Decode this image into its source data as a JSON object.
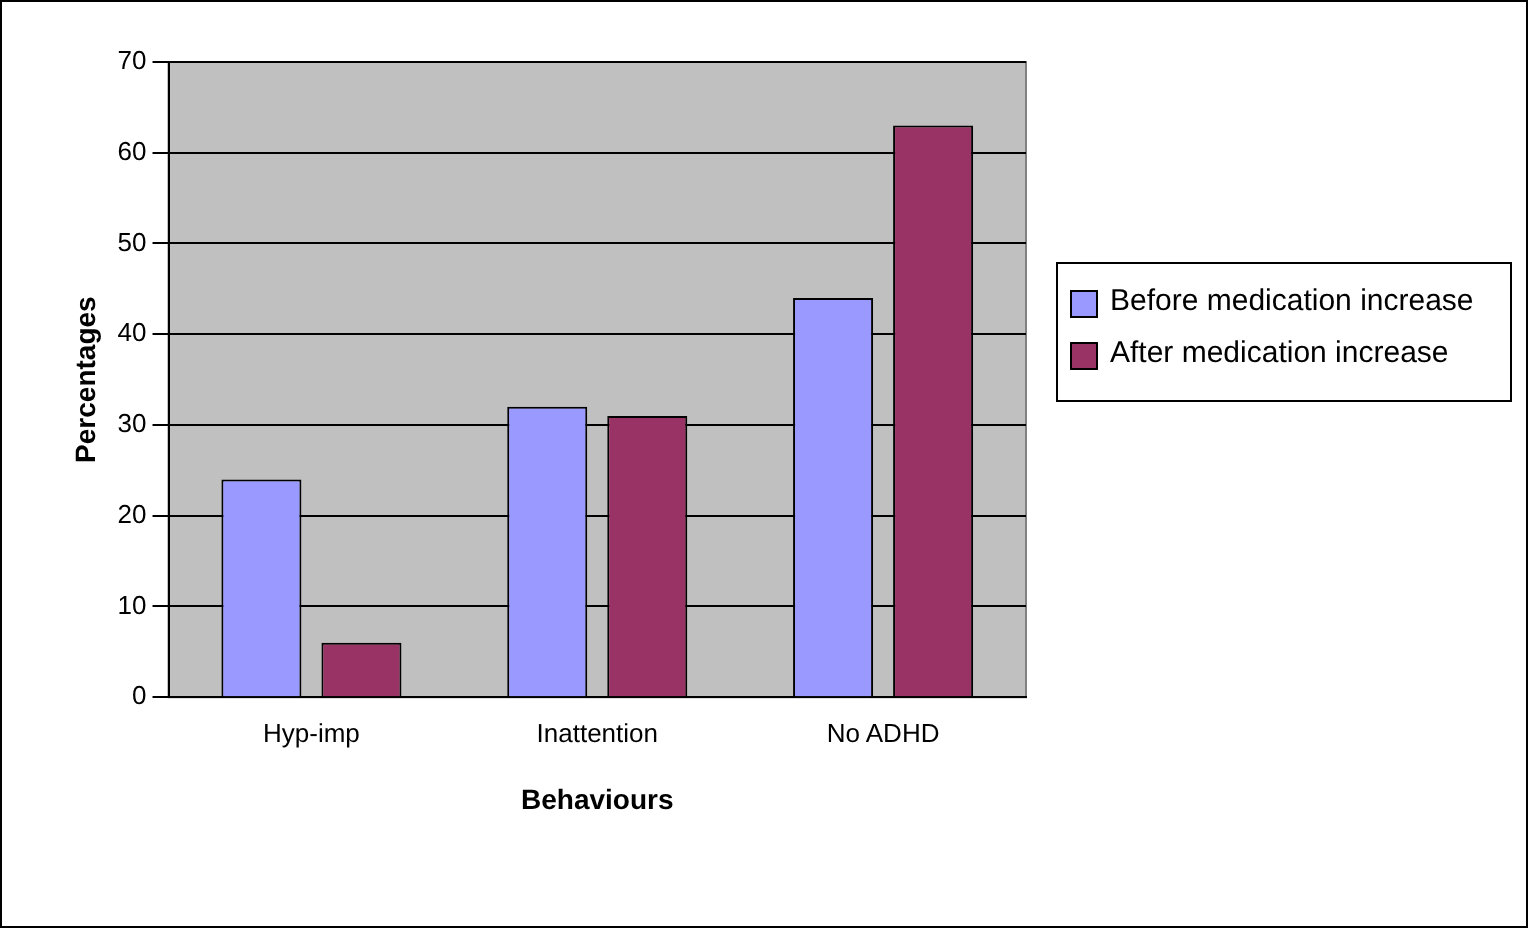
{
  "chart_data": {
    "type": "bar",
    "xlabel": "Behaviours",
    "ylabel": "Percentages",
    "categories": [
      "Hyp-imp",
      "Inattention",
      "No ADHD"
    ],
    "series": [
      {
        "name": "Before medication increase",
        "color": "#9999ff",
        "values": [
          24,
          32,
          44
        ]
      },
      {
        "name": "After medication increase",
        "color": "#993366",
        "values": [
          6,
          31,
          63
        ]
      }
    ],
    "ylim": [
      0,
      70
    ],
    "yticks": [
      0,
      10,
      20,
      30,
      40,
      50,
      60,
      70
    ],
    "grid": "y",
    "legend": "right"
  }
}
